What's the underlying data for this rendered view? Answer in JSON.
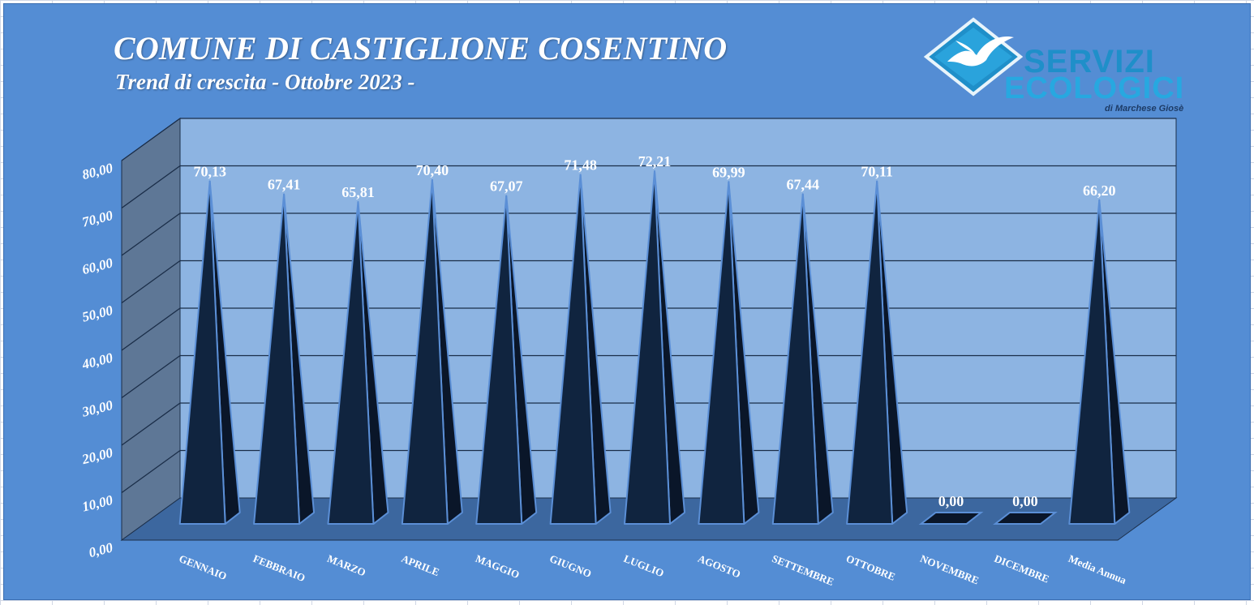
{
  "header": {
    "title": "COMUNE DI CASTIGLIONE COSENTINO",
    "subtitle": "Trend di crescita - Ottobre 2023 -"
  },
  "logo": {
    "line1": "SERVIZI",
    "line2": "ECOLOGICI",
    "line3": "di Marchese Giosè",
    "icon": "seagull-diamond-icon"
  },
  "colors": {
    "background": "#548dd4",
    "back_wall": "#8db4e2",
    "side_wall": "#5e7796",
    "floor": "#3c679f",
    "pyramid_front": "#10243f",
    "pyramid_side": "#0a1629",
    "pyramid_edge": "#5b8fd6"
  },
  "chart_data": {
    "type": "bar",
    "style": "3d-pyramid",
    "title": "COMUNE DI CASTIGLIONE COSENTINO",
    "subtitle": "Trend di crescita - Ottobre 2023 -",
    "categories": [
      "GENNAIO",
      "FEBBRAIO",
      "MARZO",
      "APRILE",
      "MAGGIO",
      "GIUGNO",
      "LUGLIO",
      "AGOSTO",
      "SETTEMBRE",
      "OTTOBRE",
      "NOVEMBRE",
      "DICEMBRE",
      "Media Annua"
    ],
    "values": [
      70.13,
      67.41,
      65.81,
      70.4,
      67.07,
      71.48,
      72.21,
      69.99,
      67.44,
      70.11,
      0.0,
      0.0,
      66.2
    ],
    "data_labels": [
      "70,13",
      "67,41",
      "65,81",
      "70,40",
      "67,07",
      "71,48",
      "72,21",
      "69,99",
      "67,44",
      "70,11",
      "0,00",
      "0,00",
      "66,20"
    ],
    "y_ticks": [
      0,
      10,
      20,
      30,
      40,
      50,
      60,
      70,
      80
    ],
    "y_tick_labels": [
      "0,00",
      "10,00",
      "20,00",
      "30,00",
      "40,00",
      "50,00",
      "60,00",
      "70,00",
      "80,00"
    ],
    "ylim": [
      0,
      80
    ],
    "grid": true,
    "legend": "none"
  }
}
